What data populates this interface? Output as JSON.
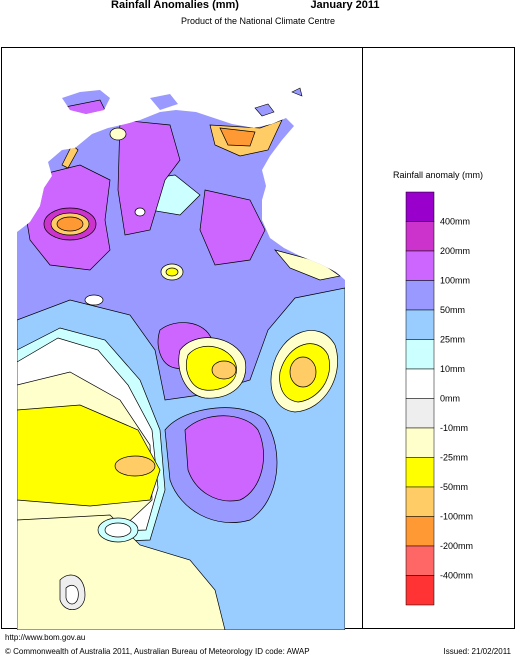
{
  "header": {
    "title": "Rainfall Anomalies (mm)",
    "period": "January 2011",
    "subtitle": "Product of the National Climate Centre"
  },
  "legend": {
    "title": "Rainfall anomaly (mm)",
    "labels": [
      "400mm",
      "200mm",
      "100mm",
      "50mm",
      "25mm",
      "10mm",
      "0mm",
      "-10mm",
      "-25mm",
      "-50mm",
      "-100mm",
      "-200mm",
      "-400mm"
    ],
    "colors": [
      "#9900cc",
      "#cc33cc",
      "#cc66ff",
      "#9999ff",
      "#99ccff",
      "#ccffff",
      "#ffffff",
      "#eeeeee",
      "#ffffcc",
      "#ffff00",
      "#ffcc66",
      "#ff9933",
      "#ff6666",
      "#ff3333"
    ]
  },
  "footer": {
    "url": "http://www.bom.gov.au",
    "copyright": "© Commonwealth of Australia 2011, Australian Bureau of Meteorology",
    "id_code": "ID code: AWAP",
    "issued": "Issued: 21/02/2011"
  }
}
